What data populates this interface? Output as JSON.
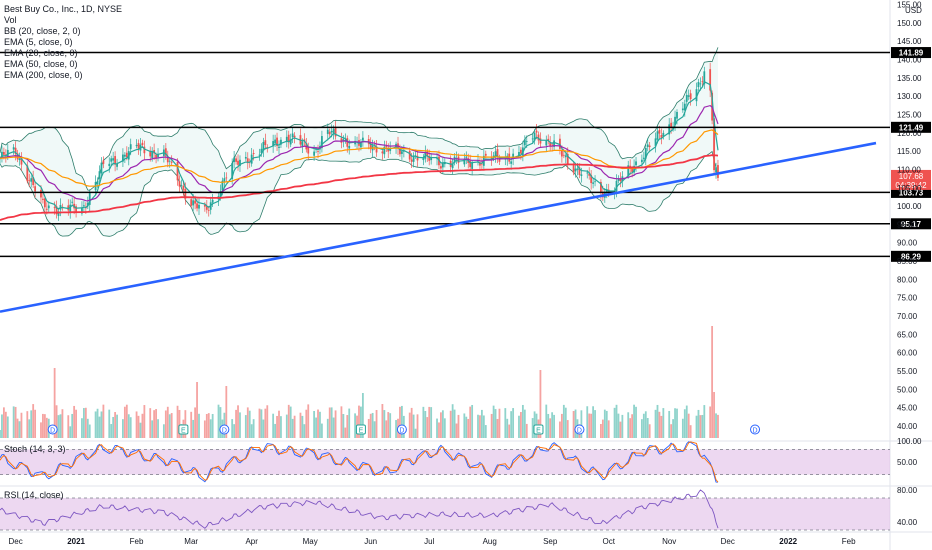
{
  "header": {
    "title": "Best Buy Co., Inc., 1D, NYSE",
    "vol_label": "Vol",
    "indicators": [
      "BB (20, close, 2, 0)",
      "EMA (5, close, 0)",
      "EMA (20, close, 0)",
      "EMA (50, close, 0)",
      "EMA (200, close, 0)"
    ]
  },
  "currency": "USD",
  "price_badge": {
    "price": "107.68",
    "countdown": "04:39:42"
  },
  "level_labels": [
    "141.89",
    "121.49",
    "103.73",
    "95.17",
    "86.29"
  ],
  "stoch_label": "Stoch (14, 3, 3)",
  "rsi_label": "RSI (14, close)",
  "colors": {
    "up": "#26a69a",
    "down": "#ef5350",
    "trendline": "#2962ff",
    "ema5": "#26a69a",
    "ema20": "#9c27b0",
    "ema50": "#ff9800",
    "ema200": "#f23645",
    "bb_band": "#2e7d6b",
    "stoch_k": "#2962ff",
    "stoch_d": "#ff6d00",
    "rsi": "#7e57c2",
    "osc_fill": "#e1bee7"
  },
  "chart_data": [
    {
      "type": "candlestick",
      "title": "Best Buy Co., Inc., 1D, NYSE",
      "ylim": [
        37,
        156
      ],
      "y_ticks": [
        40,
        45,
        50,
        55,
        60,
        65,
        70,
        75,
        80,
        85,
        90,
        95,
        100,
        105,
        110,
        115,
        120,
        125,
        130,
        135,
        140,
        145,
        150,
        155
      ],
      "x_ticks": [
        "Dec",
        "2021",
        "Feb",
        "Mar",
        "Apr",
        "May",
        "Jun",
        "Jul",
        "Aug",
        "Sep",
        "Oct",
        "Nov",
        "Dec",
        "2022",
        "Feb"
      ],
      "horizontal_levels": [
        141.89,
        121.49,
        103.73,
        95.17,
        86.29
      ],
      "trendline": {
        "from": [
          "2020-11-23",
          71.2
        ],
        "to": [
          "2022-02-15",
          117.2
        ]
      },
      "last_price": 107.68,
      "series": [
        {
          "name": "Price (approx. closes)",
          "x": [
            "2020-11-23",
            "2020-12-01",
            "2020-12-15",
            "2021-01-04",
            "2021-01-15",
            "2021-02-01",
            "2021-02-15",
            "2021-03-01",
            "2021-03-08",
            "2021-03-22",
            "2021-04-05",
            "2021-04-19",
            "2021-05-03",
            "2021-05-10",
            "2021-05-24",
            "2021-06-07",
            "2021-06-21",
            "2021-07-06",
            "2021-07-20",
            "2021-08-02",
            "2021-08-16",
            "2021-08-24",
            "2021-09-01",
            "2021-09-13",
            "2021-09-27",
            "2021-10-04",
            "2021-10-18",
            "2021-11-01",
            "2021-11-15",
            "2021-11-19",
            "2021-11-22",
            "2021-11-23",
            "2021-11-24",
            "2021-11-26"
          ],
          "values": [
            113,
            115,
            100,
            99,
            111,
            116,
            114,
            101,
            98,
            111,
            115,
            119,
            115,
            120,
            117,
            116,
            114,
            112,
            112,
            113,
            114,
            120,
            117,
            111,
            104,
            105,
            114,
            122,
            132,
            137,
            131,
            124,
            110,
            107.68
          ]
        }
      ]
    },
    {
      "type": "bar",
      "title": "Vol",
      "x_ticks": [
        "Dec",
        "2021",
        "Feb",
        "Mar",
        "Apr",
        "May",
        "Jun",
        "Jul",
        "Aug",
        "Sep",
        "Oct",
        "Nov",
        "Dec",
        "2022",
        "Feb"
      ],
      "event_markers": [
        {
          "date": "2020-12-20",
          "label": "D"
        },
        {
          "date": "2021-02-25",
          "label": "E"
        },
        {
          "date": "2021-03-18",
          "label": "D"
        },
        {
          "date": "2021-05-27",
          "label": "E"
        },
        {
          "date": "2021-06-17",
          "label": "D"
        },
        {
          "date": "2021-08-26",
          "label": "E"
        },
        {
          "date": "2021-09-16",
          "label": "D"
        },
        {
          "date": "2021-12-15",
          "label": "D"
        }
      ]
    },
    {
      "type": "line",
      "title": "Stoch (14, 3, 3)",
      "ylim": [
        0,
        100
      ],
      "y_ticks": [
        50,
        100
      ],
      "bands": [
        20,
        80
      ],
      "series": [
        {
          "name": "K",
          "x": [
            "2020-11-23",
            "2020-12-15",
            "2021-01-15",
            "2021-02-15",
            "2021-03-08",
            "2021-04-05",
            "2021-05-03",
            "2021-06-07",
            "2021-07-06",
            "2021-08-02",
            "2021-09-01",
            "2021-09-27",
            "2021-10-18",
            "2021-11-15",
            "2021-11-26"
          ],
          "values": [
            60,
            15,
            85,
            55,
            15,
            85,
            70,
            25,
            80,
            25,
            90,
            15,
            75,
            90,
            5
          ]
        }
      ]
    },
    {
      "type": "line",
      "title": "RSI (14, close)",
      "ylim": [
        30,
        85
      ],
      "y_ticks": [
        40,
        80
      ],
      "bands": [
        30,
        70
      ],
      "series": [
        {
          "name": "RSI",
          "x": [
            "2020-11-23",
            "2020-12-15",
            "2021-01-15",
            "2021-02-15",
            "2021-03-08",
            "2021-04-05",
            "2021-05-03",
            "2021-06-07",
            "2021-07-06",
            "2021-08-02",
            "2021-09-01",
            "2021-09-27",
            "2021-10-18",
            "2021-11-15",
            "2021-11-19",
            "2021-11-26"
          ],
          "values": [
            55,
            38,
            60,
            52,
            35,
            58,
            65,
            45,
            50,
            48,
            62,
            38,
            58,
            75,
            79,
            35
          ]
        }
      ]
    }
  ]
}
